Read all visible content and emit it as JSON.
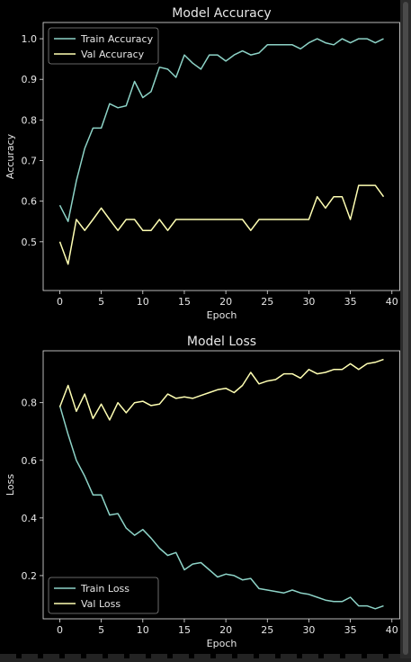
{
  "chart_data": [
    {
      "type": "line",
      "title": "Model Accuracy",
      "xlabel": "Epoch",
      "ylabel": "Accuracy",
      "xlim": [
        -2,
        41
      ],
      "ylim": [
        0.38,
        1.04
      ],
      "xticks": [
        0,
        5,
        10,
        15,
        20,
        25,
        30,
        35,
        40
      ],
      "yticks": [
        0.5,
        0.6,
        0.7,
        0.8,
        0.9,
        1.0
      ],
      "ytick_labels": [
        "0.5",
        "0.6",
        "0.7",
        "0.8",
        "0.9",
        "1.0"
      ],
      "legend_position": "top-left",
      "grid": false,
      "x": [
        0,
        1,
        2,
        3,
        4,
        5,
        6,
        7,
        8,
        9,
        10,
        11,
        12,
        13,
        14,
        15,
        16,
        17,
        18,
        19,
        20,
        21,
        22,
        23,
        24,
        25,
        26,
        27,
        28,
        29,
        30,
        31,
        32,
        33,
        34,
        35,
        36,
        37,
        38,
        39
      ],
      "series": [
        {
          "name": "Train Accuracy",
          "color": "#8dd3c7",
          "values": [
            0.59,
            0.55,
            0.65,
            0.73,
            0.78,
            0.78,
            0.84,
            0.83,
            0.835,
            0.895,
            0.855,
            0.87,
            0.93,
            0.925,
            0.905,
            0.96,
            0.94,
            0.925,
            0.96,
            0.96,
            0.945,
            0.96,
            0.97,
            0.96,
            0.965,
            0.985,
            0.985,
            0.985,
            0.985,
            0.975,
            0.99,
            1.0,
            0.99,
            0.985,
            1.0,
            0.99,
            1.0,
            1.0,
            0.99,
            1.0
          ]
        },
        {
          "name": "Val Accuracy",
          "color": "#ffffb3",
          "values": [
            0.5,
            0.445,
            0.555,
            0.528,
            0.555,
            0.583,
            0.555,
            0.528,
            0.555,
            0.555,
            0.528,
            0.528,
            0.555,
            0.528,
            0.555,
            0.555,
            0.555,
            0.555,
            0.555,
            0.555,
            0.555,
            0.555,
            0.555,
            0.528,
            0.555,
            0.555,
            0.555,
            0.555,
            0.555,
            0.555,
            0.555,
            0.611,
            0.583,
            0.611,
            0.611,
            0.555,
            0.639,
            0.639,
            0.639,
            0.611
          ]
        }
      ]
    },
    {
      "type": "line",
      "title": "Model Loss",
      "xlabel": "Epoch",
      "ylabel": "Loss",
      "xlim": [
        -2,
        41
      ],
      "ylim": [
        0.05,
        0.98
      ],
      "xticks": [
        0,
        5,
        10,
        15,
        20,
        25,
        30,
        35,
        40
      ],
      "yticks": [
        0.2,
        0.4,
        0.6,
        0.8
      ],
      "ytick_labels": [
        "0.2",
        "0.4",
        "0.6",
        "0.8"
      ],
      "legend_position": "bottom-left",
      "grid": false,
      "x": [
        0,
        1,
        2,
        3,
        4,
        5,
        6,
        7,
        8,
        9,
        10,
        11,
        12,
        13,
        14,
        15,
        16,
        17,
        18,
        19,
        20,
        21,
        22,
        23,
        24,
        25,
        26,
        27,
        28,
        29,
        30,
        31,
        32,
        33,
        34,
        35,
        36,
        37,
        38,
        39
      ],
      "series": [
        {
          "name": "Train Loss",
          "color": "#8dd3c7",
          "values": [
            0.79,
            0.69,
            0.6,
            0.545,
            0.48,
            0.48,
            0.41,
            0.415,
            0.365,
            0.34,
            0.36,
            0.33,
            0.295,
            0.27,
            0.28,
            0.22,
            0.24,
            0.245,
            0.22,
            0.195,
            0.205,
            0.2,
            0.185,
            0.19,
            0.155,
            0.15,
            0.145,
            0.14,
            0.15,
            0.14,
            0.135,
            0.125,
            0.115,
            0.11,
            0.11,
            0.125,
            0.095,
            0.095,
            0.085,
            0.095
          ]
        },
        {
          "name": "Val Loss",
          "color": "#ffffb3",
          "values": [
            0.785,
            0.86,
            0.77,
            0.83,
            0.745,
            0.795,
            0.74,
            0.8,
            0.765,
            0.8,
            0.805,
            0.79,
            0.795,
            0.83,
            0.815,
            0.82,
            0.815,
            0.825,
            0.835,
            0.845,
            0.85,
            0.835,
            0.86,
            0.905,
            0.865,
            0.875,
            0.88,
            0.9,
            0.9,
            0.885,
            0.915,
            0.9,
            0.905,
            0.915,
            0.915,
            0.935,
            0.915,
            0.935,
            0.94,
            0.95
          ]
        }
      ]
    }
  ]
}
